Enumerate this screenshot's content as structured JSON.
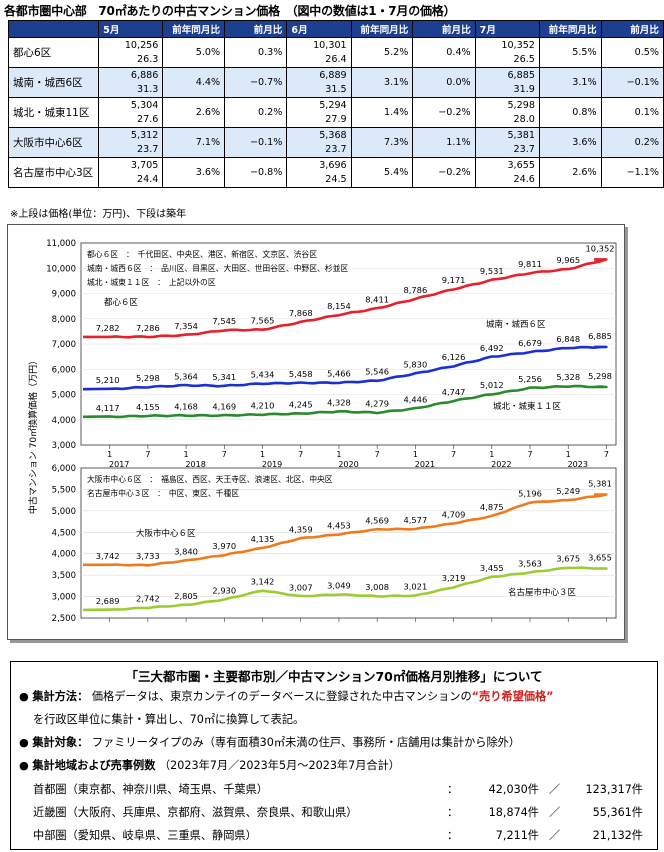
{
  "page": {
    "title": "各都市圏中心部　70㎡あたりの中古マンション価格　（図中の数値は1・7月の価格）",
    "note": "※上段は価格(単位：万円)、下段は築年"
  },
  "table": {
    "months": [
      "5月",
      "6月",
      "7月"
    ],
    "subheaders": [
      "前年同月比",
      "前月比"
    ],
    "rows": [
      {
        "name": "都心6区",
        "shaded": false,
        "cells": [
          {
            "price": "10,256",
            "age": "26.3",
            "yoy": "5.0%",
            "mom": "0.3%"
          },
          {
            "price": "10,301",
            "age": "26.4",
            "yoy": "5.2%",
            "mom": "0.4%"
          },
          {
            "price": "10,352",
            "age": "26.5",
            "yoy": "5.5%",
            "mom": "0.5%"
          }
        ]
      },
      {
        "name": "城南・城西6区",
        "shaded": true,
        "cells": [
          {
            "price": "6,886",
            "age": "31.3",
            "yoy": "4.4%",
            "mom": "−0.7%"
          },
          {
            "price": "6,889",
            "age": "31.5",
            "yoy": "3.1%",
            "mom": "0.0%"
          },
          {
            "price": "6,885",
            "age": "31.9",
            "yoy": "3.1%",
            "mom": "−0.1%"
          }
        ]
      },
      {
        "name": "城北・城東11区",
        "shaded": false,
        "cells": [
          {
            "price": "5,304",
            "age": "27.6",
            "yoy": "2.6%",
            "mom": "0.2%"
          },
          {
            "price": "5,294",
            "age": "27.9",
            "yoy": "1.4%",
            "mom": "−0.2%"
          },
          {
            "price": "5,298",
            "age": "28.0",
            "yoy": "0.8%",
            "mom": "0.1%"
          }
        ]
      },
      {
        "name": "大阪市中心6区",
        "shaded": true,
        "cells": [
          {
            "price": "5,312",
            "age": "23.7",
            "yoy": "7.1%",
            "mom": "−0.1%"
          },
          {
            "price": "5,368",
            "age": "23.7",
            "yoy": "7.3%",
            "mom": "1.1%"
          },
          {
            "price": "5,381",
            "age": "23.7",
            "yoy": "3.6%",
            "mom": "0.2%"
          }
        ]
      },
      {
        "name": "名古屋市中心3区",
        "shaded": false,
        "cells": [
          {
            "price": "3,705",
            "age": "24.4",
            "yoy": "3.6%",
            "mom": "−0.8%"
          },
          {
            "price": "3,696",
            "age": "24.5",
            "yoy": "5.4%",
            "mom": "−0.2%"
          },
          {
            "price": "3,655",
            "age": "24.6",
            "yoy": "2.6%",
            "mom": "−1.1%"
          }
        ]
      }
    ]
  },
  "chart_data": [
    {
      "type": "line",
      "ylabel": "中古マンション 70㎡換算価格（万円）",
      "ylim": [
        3000,
        11000
      ],
      "yticks": [
        "3,000",
        "4,000",
        "5,000",
        "6,000",
        "7,000",
        "8,000",
        "9,000",
        "10,000",
        "11,000"
      ],
      "x_tick_labels": [
        "1",
        "7",
        "1",
        "7",
        "1",
        "7",
        "1",
        "7",
        "1",
        "7",
        "1",
        "7",
        "1",
        "7"
      ],
      "year_labels": [
        "2017",
        "2018",
        "2019",
        "2020",
        "2021",
        "2022",
        "2023"
      ],
      "legend": [
        "都心６区　：　千代田区、中央区、港区、新宿区、文京区、渋谷区",
        "城南・城西６区　：　品川区、目黒区、大田区、世田谷区、中野区、杉並区",
        "城北・城東１１区　：　上記以外の区"
      ],
      "series": [
        {
          "name": "都心６区",
          "color": "#e8202a",
          "labels": [
            "7,282",
            "7,286",
            "7,354",
            "7,545",
            "7,565",
            "7,868",
            "8,154",
            "8,411",
            "8,786",
            "9,171",
            "9,531",
            "9,811",
            "9,965",
            "10,352"
          ],
          "values": [
            7282,
            7286,
            7354,
            7545,
            7565,
            7868,
            8154,
            8411,
            8786,
            9171,
            9531,
            9811,
            9965,
            10352
          ]
        },
        {
          "name": "城南・城西６区",
          "color": "#1a2fd4",
          "labels": [
            "5,210",
            "5,298",
            "5,364",
            "5,341",
            "5,434",
            "5,458",
            "5,466",
            "5,546",
            "5,830",
            "6,126",
            "6,492",
            "6,679",
            "6,848",
            "6,885"
          ],
          "values": [
            5210,
            5298,
            5364,
            5341,
            5434,
            5458,
            5466,
            5546,
            5830,
            6126,
            6492,
            6679,
            6848,
            6885
          ]
        },
        {
          "name": "城北・城東１１区",
          "color": "#2a8a2e",
          "labels": [
            "4,117",
            "4,155",
            "4,168",
            "4,169",
            "4,210",
            "4,245",
            "4,328",
            "4,279",
            "4,446",
            "4,747",
            "5,012",
            "5,256",
            "5,328",
            "5,298"
          ],
          "values": [
            4117,
            4155,
            4168,
            4169,
            4210,
            4245,
            4328,
            4279,
            4446,
            4747,
            5012,
            5256,
            5328,
            5298
          ]
        }
      ]
    },
    {
      "type": "line",
      "ylim": [
        2500,
        6000
      ],
      "yticks": [
        "2,500",
        "3,000",
        "3,500",
        "4,000",
        "4,500",
        "5,000",
        "5,500",
        "6,000"
      ],
      "legend": [
        "大阪市中心６区　：　福島区、西区、天王寺区、浪速区、北区、中央区",
        "名古屋市中心３区　：　中区、東区、千種区"
      ],
      "series": [
        {
          "name": "大阪市中心６区",
          "color": "#f07a1c",
          "labels": [
            "3,742",
            "3,733",
            "3,840",
            "3,970",
            "4,135",
            "4,359",
            "4,453",
            "4,569",
            "4,577",
            "4,709",
            "4,875",
            "5,196",
            "5,249",
            "5,381"
          ],
          "values": [
            3742,
            3733,
            3840,
            3970,
            4135,
            4359,
            4453,
            4569,
            4577,
            4709,
            4875,
            5196,
            5249,
            5381
          ]
        },
        {
          "name": "名古屋市中心３区",
          "color": "#9acd32",
          "labels": [
            "2,689",
            "2,742",
            "2,805",
            "2,930",
            "3,142",
            "3,007",
            "3,049",
            "3,008",
            "3,021",
            "3,219",
            "3,455",
            "3,563",
            "3,675",
            "3,655"
          ],
          "values": [
            2689,
            2742,
            2805,
            2930,
            3142,
            3007,
            3049,
            3008,
            3021,
            3219,
            3455,
            3563,
            3675,
            3655
          ]
        }
      ]
    }
  ],
  "info": {
    "heading": "「三大都市圏・主要都市別／中古マンション70㎡価格月別推移」について",
    "bullet": "●",
    "item1_label": "集計方法：",
    "item1_text": "価格データは、東京カンテイのデータベースに登録された中古マンションの",
    "item1_red": "“売り希望価格”",
    "item1_cont": "を行政区単位に集計・算出し、70㎡に換算して表記。",
    "item2_label": "集計対象：",
    "item2_text": "ファミリータイプのみ（専有面積30㎡未満の住戸、事務所・店舗用は集計から除外）",
    "item3_label": "集計地域および売事例数",
    "item3_text": "（2023年7月／2023年5月～2023年7月合計）",
    "regions": [
      {
        "name": "首都圏（東京都、神奈川県、埼玉県、千葉県）",
        "a": "42,030件",
        "b": "123,317件"
      },
      {
        "name": "近畿圏（大阪府、兵庫県、京都府、滋賀県、奈良県、和歌山県）",
        "a": "18,874件",
        "b": "55,361件"
      },
      {
        "name": "中部圏（愛知県、岐阜県、三重県、静岡県）",
        "a": "7,211件",
        "b": "21,132件"
      }
    ],
    "colon": "：",
    "slash": "／"
  }
}
